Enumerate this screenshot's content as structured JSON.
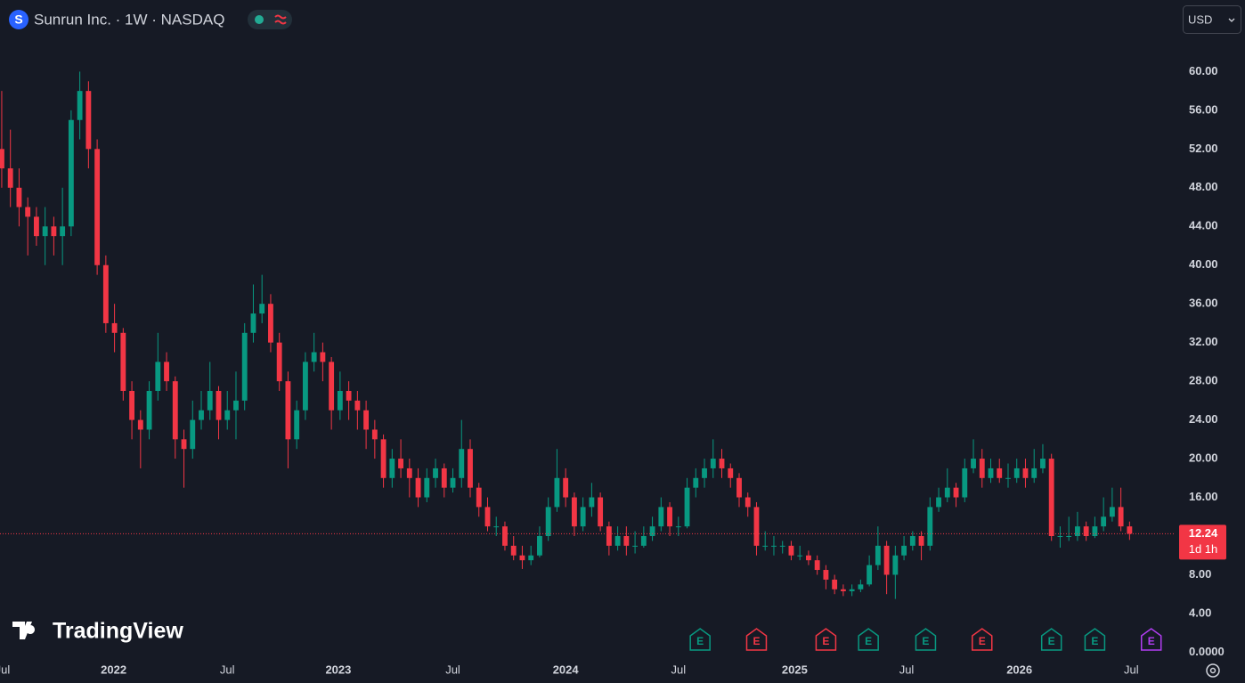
{
  "chart_data": {
    "type": "candlestick",
    "title": "Sunrun Inc. · 1W · NASDAQ",
    "logo": "S",
    "currency": "USD",
    "brand": "TradingView",
    "up_color": "#089981",
    "down_color": "#f23645",
    "ylim": [
      -0.7,
      67.4
    ],
    "yticks": [
      {
        "value": 0,
        "label": "0.0000"
      },
      {
        "value": 4,
        "label": "4.00"
      },
      {
        "value": 8,
        "label": "8.00"
      },
      {
        "value": 12,
        "label": "12.00"
      },
      {
        "value": 16,
        "label": "16.00"
      },
      {
        "value": 20,
        "label": "20.00"
      },
      {
        "value": 24,
        "label": "24.00"
      },
      {
        "value": 28,
        "label": "28.00"
      },
      {
        "value": 32,
        "label": "32.00"
      },
      {
        "value": 36,
        "label": "36.00"
      },
      {
        "value": 40,
        "label": "40.00"
      },
      {
        "value": 44,
        "label": "44.00"
      },
      {
        "value": 48,
        "label": "48.00"
      },
      {
        "value": 52,
        "label": "52.00"
      },
      {
        "value": 56,
        "label": "56.00"
      },
      {
        "value": 60,
        "label": "60.00"
      }
    ],
    "xlim": [
      -0.2,
      135.3
    ],
    "xticks": [
      {
        "value": 0.1,
        "label": "Jul"
      },
      {
        "value": 12.9,
        "label": "2022"
      },
      {
        "value": 26,
        "label": "Jul"
      },
      {
        "value": 38.8,
        "label": "2023"
      },
      {
        "value": 52,
        "label": "Jul"
      },
      {
        "value": 65,
        "label": "2024"
      },
      {
        "value": 78,
        "label": "Jul"
      },
      {
        "value": 91.4,
        "label": "2025"
      },
      {
        "value": 104.3,
        "label": "Jul"
      },
      {
        "value": 117.3,
        "label": "2026"
      },
      {
        "value": 130.2,
        "label": "Jul"
      }
    ],
    "last_price": 12.24,
    "countdown": "1d 1h",
    "events": [
      {
        "index": 80.5,
        "label": "E",
        "color": "#089981"
      },
      {
        "index": 87,
        "label": "E",
        "color": "#f23645"
      },
      {
        "index": 95,
        "label": "E",
        "color": "#f23645"
      },
      {
        "index": 99.9,
        "label": "E",
        "color": "#089981"
      },
      {
        "index": 106.5,
        "label": "E",
        "color": "#089981"
      },
      {
        "index": 113,
        "label": "E",
        "color": "#f23645"
      },
      {
        "index": 121,
        "label": "E",
        "color": "#089981"
      },
      {
        "index": 126,
        "label": "E",
        "color": "#089981"
      },
      {
        "index": 132.5,
        "label": "E",
        "color": "#b13df2"
      }
    ],
    "ohlc": [
      [
        52,
        58,
        48,
        50
      ],
      [
        50,
        54,
        46,
        48
      ],
      [
        48,
        50,
        44,
        46
      ],
      [
        46,
        47,
        41,
        45
      ],
      [
        45,
        46,
        42,
        43
      ],
      [
        43,
        46,
        40,
        44
      ],
      [
        44,
        45,
        41,
        43
      ],
      [
        43,
        48,
        40,
        44
      ],
      [
        44,
        56,
        43,
        55
      ],
      [
        55,
        60,
        53,
        58
      ],
      [
        58,
        59,
        50,
        52
      ],
      [
        52,
        53,
        39,
        40
      ],
      [
        40,
        41,
        33,
        34
      ],
      [
        34,
        36,
        31,
        33
      ],
      [
        33,
        33.5,
        26,
        27
      ],
      [
        27,
        28,
        22,
        24
      ],
      [
        24,
        25,
        19,
        23
      ],
      [
        23,
        28,
        22,
        27
      ],
      [
        27,
        33,
        26,
        30
      ],
      [
        30,
        31,
        27,
        28
      ],
      [
        28,
        28.5,
        20,
        22
      ],
      [
        22,
        23,
        17,
        21
      ],
      [
        21,
        26,
        20,
        24
      ],
      [
        24,
        27,
        23,
        25
      ],
      [
        25,
        30,
        24,
        27
      ],
      [
        27,
        27.5,
        22,
        24
      ],
      [
        24,
        27,
        23,
        25
      ],
      [
        25,
        29,
        22,
        26
      ],
      [
        26,
        34,
        25,
        33
      ],
      [
        33,
        38,
        32,
        35
      ],
      [
        35,
        39,
        34,
        36
      ],
      [
        36,
        37,
        31,
        32
      ],
      [
        32,
        33,
        27,
        28
      ],
      [
        28,
        29,
        19,
        22
      ],
      [
        22,
        26,
        21,
        25
      ],
      [
        25,
        31,
        24,
        30
      ],
      [
        30,
        33,
        29,
        31
      ],
      [
        31,
        32,
        28,
        30
      ],
      [
        30,
        30.5,
        23,
        25
      ],
      [
        25,
        29,
        24,
        27
      ],
      [
        27,
        28,
        24,
        26
      ],
      [
        26,
        27,
        23,
        25
      ],
      [
        25,
        26,
        21,
        23
      ],
      [
        23,
        24,
        20,
        22
      ],
      [
        22,
        22.5,
        17,
        18
      ],
      [
        18,
        21,
        17,
        20
      ],
      [
        20,
        22,
        18,
        19
      ],
      [
        19,
        20,
        16,
        18
      ],
      [
        18,
        19,
        15,
        16
      ],
      [
        16,
        19,
        15.5,
        18
      ],
      [
        18,
        20,
        17,
        19
      ],
      [
        19,
        19.5,
        16,
        17
      ],
      [
        17,
        19,
        16.5,
        18
      ],
      [
        18,
        24,
        17,
        21
      ],
      [
        21,
        22,
        16,
        17
      ],
      [
        17,
        17.5,
        14,
        15
      ],
      [
        15,
        16,
        12.5,
        13
      ],
      [
        13,
        14,
        12,
        13
      ],
      [
        13,
        13.5,
        10.5,
        11
      ],
      [
        11,
        12,
        9.5,
        10
      ],
      [
        10,
        11,
        8.6,
        9.5
      ],
      [
        9.5,
        11,
        9,
        10
      ],
      [
        10,
        13,
        9.8,
        12
      ],
      [
        12,
        16,
        11.5,
        15
      ],
      [
        15,
        21,
        14.5,
        18
      ],
      [
        18,
        19,
        15,
        16
      ],
      [
        16,
        16.5,
        12,
        13
      ],
      [
        13,
        16,
        12.5,
        15
      ],
      [
        15,
        17.5,
        14,
        16
      ],
      [
        16,
        16.5,
        12.5,
        13
      ],
      [
        13,
        13.5,
        10,
        11
      ],
      [
        11,
        13,
        10.5,
        12
      ],
      [
        12,
        13,
        10,
        11
      ],
      [
        11,
        12.5,
        10.2,
        11
      ],
      [
        11,
        13,
        10.8,
        12
      ],
      [
        12,
        14,
        11.5,
        13
      ],
      [
        13,
        16,
        12.5,
        15
      ],
      [
        15,
        15.5,
        12,
        13
      ],
      [
        13,
        14,
        12,
        13
      ],
      [
        13,
        18,
        12.8,
        17
      ],
      [
        17,
        19,
        16,
        18
      ],
      [
        18,
        20,
        17,
        19
      ],
      [
        19,
        22,
        18,
        20
      ],
      [
        20,
        21,
        18,
        19
      ],
      [
        19,
        19.5,
        17,
        18
      ],
      [
        18,
        18.5,
        15,
        16
      ],
      [
        16,
        16.5,
        14,
        15
      ],
      [
        15,
        15.5,
        10,
        11
      ],
      [
        11,
        12.5,
        10.5,
        11
      ],
      [
        11,
        12,
        10,
        11
      ],
      [
        11,
        11.5,
        10.2,
        11
      ],
      [
        11,
        11.5,
        9.5,
        10
      ],
      [
        10,
        11,
        9.5,
        10
      ],
      [
        10,
        10.5,
        9,
        9.5
      ],
      [
        9.5,
        10,
        8,
        8.5
      ],
      [
        8.5,
        9,
        6.5,
        7.5
      ],
      [
        7.5,
        8,
        6,
        6.5
      ],
      [
        6.5,
        7,
        5.8,
        6.3
      ],
      [
        6.3,
        7,
        5.8,
        6.5
      ],
      [
        6.5,
        7.5,
        6.2,
        7
      ],
      [
        7,
        10,
        6.8,
        9
      ],
      [
        9,
        13,
        8.5,
        11
      ],
      [
        11,
        11.5,
        6,
        8
      ],
      [
        8,
        11,
        5.5,
        10
      ],
      [
        10,
        12,
        9.5,
        11
      ],
      [
        11,
        12.5,
        10.5,
        12
      ],
      [
        12,
        12.5,
        9.5,
        11
      ],
      [
        11,
        16,
        10.5,
        15
      ],
      [
        15,
        17,
        14.5,
        16
      ],
      [
        16,
        19,
        15.5,
        17
      ],
      [
        17,
        17.5,
        15,
        16
      ],
      [
        16,
        20,
        15.5,
        19
      ],
      [
        19,
        22,
        18.5,
        20
      ],
      [
        20,
        21,
        17,
        18
      ],
      [
        18,
        20,
        17.5,
        19
      ],
      [
        19,
        20,
        17.5,
        18
      ],
      [
        18,
        19.5,
        17,
        18
      ],
      [
        18,
        20,
        17.5,
        19
      ],
      [
        19,
        20,
        17,
        18
      ],
      [
        18,
        21,
        17.5,
        19
      ],
      [
        19,
        21.5,
        18.5,
        20
      ],
      [
        20,
        20.5,
        11.5,
        12
      ],
      [
        12,
        13,
        10.8,
        12
      ],
      [
        12,
        14,
        11.5,
        12
      ],
      [
        12,
        14.5,
        11.5,
        13
      ],
      [
        13,
        13.5,
        11.5,
        12
      ],
      [
        12,
        14,
        11.8,
        13
      ],
      [
        13,
        16,
        12.5,
        14
      ],
      [
        14,
        17,
        13.5,
        15
      ],
      [
        15,
        17,
        12.5,
        13
      ],
      [
        13,
        13.5,
        11.6,
        12.24
      ]
    ]
  }
}
